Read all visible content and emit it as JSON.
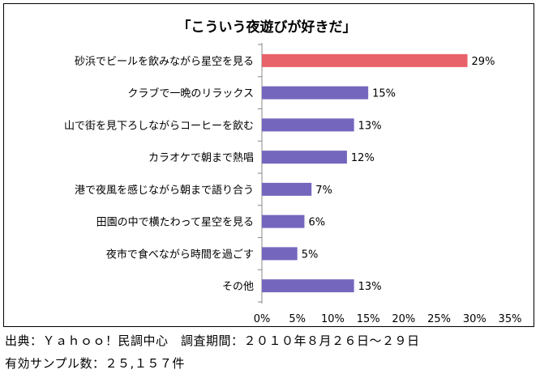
{
  "chart_data": {
    "type": "bar",
    "orientation": "horizontal",
    "title": "「こういう夜遊びが好きだ」",
    "categories": [
      "砂浜でビールを飲みながら星空を見る",
      "クラブで一晩のリラックス",
      "山で街を見下ろしながらコーヒーを飲む",
      "カラオケで朝まで熱唱",
      "港で夜風を感じながら朝まで語り合う",
      "田園の中で横たわって星空を見る",
      "夜市で食べながら時間を過ごす",
      "その他"
    ],
    "values": [
      29,
      15,
      13,
      12,
      7,
      6,
      5,
      13
    ],
    "value_labels": [
      "29%",
      "15%",
      "13%",
      "12%",
      "7%",
      "6%",
      "5%",
      "13%"
    ],
    "bar_colors": [
      "#e8626b",
      "#7566bd",
      "#7566bd",
      "#7566bd",
      "#7566bd",
      "#7566bd",
      "#7566bd",
      "#7566bd"
    ],
    "xlim": [
      0,
      35
    ],
    "xticks": [
      0,
      5,
      10,
      15,
      20,
      25,
      30,
      35
    ],
    "xtick_labels": [
      "0%",
      "5%",
      "10%",
      "15%",
      "20%",
      "25%",
      "30%",
      "35%"
    ],
    "grid": false,
    "legend": "none"
  },
  "footer": {
    "source": "出典：Ｙａｈｏｏ！民調中心　調査期間：２０１０年８月２６日〜２９日",
    "sample": "有効サンプル数：２５,１５７件"
  }
}
